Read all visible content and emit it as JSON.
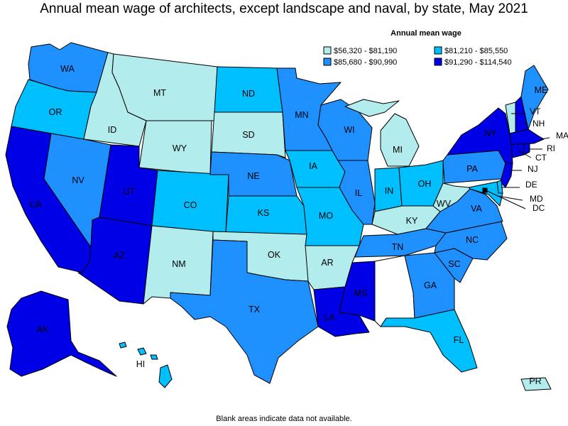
{
  "title": "Annual mean wage of architects, except landscape and naval, by state, May 2021",
  "legend": {
    "title": "Annual mean wage",
    "bins": [
      {
        "label": "$56,320 - $81,190",
        "color": "#b2ecec"
      },
      {
        "label": "$81,210 - $85,550",
        "color": "#00bfff"
      },
      {
        "label": "$85,680 - $90,990",
        "color": "#1e90ff"
      },
      {
        "label": "$91,290 - $114,540",
        "color": "#0000e6"
      }
    ]
  },
  "states": {
    "WA": 2,
    "OR": 1,
    "CA": 3,
    "ID": 0,
    "NV": 2,
    "MT": 0,
    "WY": 0,
    "UT": 3,
    "AZ": 3,
    "CO": 1,
    "NM": 0,
    "ND": 1,
    "SD": 0,
    "NE": 2,
    "KS": 1,
    "OK": 0,
    "TX": 2,
    "MN": 2,
    "IA": 1,
    "MO": 1,
    "AR": 0,
    "LA": 3,
    "WI": 2,
    "IL": 2,
    "MS": 3,
    "MI": 0,
    "IN": 1,
    "OH": 1,
    "KY": 0,
    "TN": 2,
    "AL": null,
    "GA": 2,
    "FL": 1,
    "SC": 2,
    "NC": 2,
    "VA": 2,
    "WV": 0,
    "PA": 2,
    "NY": 3,
    "NJ": 3,
    "DE": 1,
    "MD": 1,
    "DC": 3,
    "CT": 3,
    "RI": 3,
    "MA": 3,
    "VT": 0,
    "NH": 3,
    "ME": 2,
    "AK": 3,
    "HI": 1,
    "PR": 0
  },
  "labels": [
    "WA",
    "OR",
    "CA",
    "ID",
    "NV",
    "MT",
    "WY",
    "UT",
    "AZ",
    "CO",
    "NM",
    "ND",
    "SD",
    "NE",
    "KS",
    "OK",
    "TX",
    "MN",
    "IA",
    "MO",
    "AR",
    "LA",
    "WI",
    "IL",
    "MS",
    "MI",
    "IN",
    "OH",
    "KY",
    "TN",
    "GA",
    "FL",
    "SC",
    "NC",
    "VA",
    "WV",
    "PA",
    "NY",
    "NJ",
    "DE",
    "MD",
    "DC",
    "CT",
    "RI",
    "MA",
    "VT",
    "NH",
    "ME",
    "AK",
    "HI",
    "PR"
  ],
  "footnote": "Blank areas indicate data not available."
}
